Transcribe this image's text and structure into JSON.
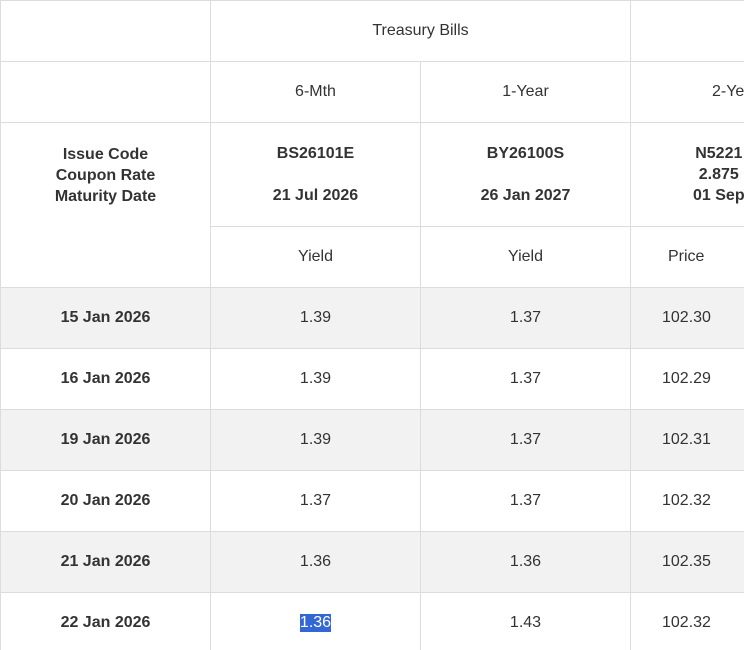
{
  "header": {
    "group": "Treasury Bills",
    "tenors": [
      "6-Mth",
      "1-Year",
      "2-Ye"
    ],
    "labels": [
      "Issue Code",
      "Coupon Rate",
      "Maturity Date"
    ],
    "issues": [
      {
        "lines": [
          "BS26101E",
          "",
          "21 Jul 2026"
        ]
      },
      {
        "lines": [
          "BY26100S",
          "",
          "26 Jan 2027"
        ]
      },
      {
        "lines": [
          "N5221",
          "2.875",
          "01 Sep"
        ]
      }
    ],
    "measures": [
      "Yield",
      "Yield",
      "Price"
    ]
  },
  "table": {
    "rows": [
      {
        "date": "15 Jan 2026",
        "values": [
          "1.39",
          "1.37",
          "102.30"
        ]
      },
      {
        "date": "16 Jan 2026",
        "values": [
          "1.39",
          "1.37",
          "102.29"
        ]
      },
      {
        "date": "19 Jan 2026",
        "values": [
          "1.39",
          "1.37",
          "102.31"
        ]
      },
      {
        "date": "20 Jan 2026",
        "values": [
          "1.37",
          "1.37",
          "102.32"
        ]
      },
      {
        "date": "21 Jan 2026",
        "values": [
          "1.36",
          "1.36",
          "102.35"
        ]
      },
      {
        "date": "22 Jan 2026",
        "values": [
          "1.36",
          "1.43",
          "102.32"
        ]
      }
    ]
  }
}
